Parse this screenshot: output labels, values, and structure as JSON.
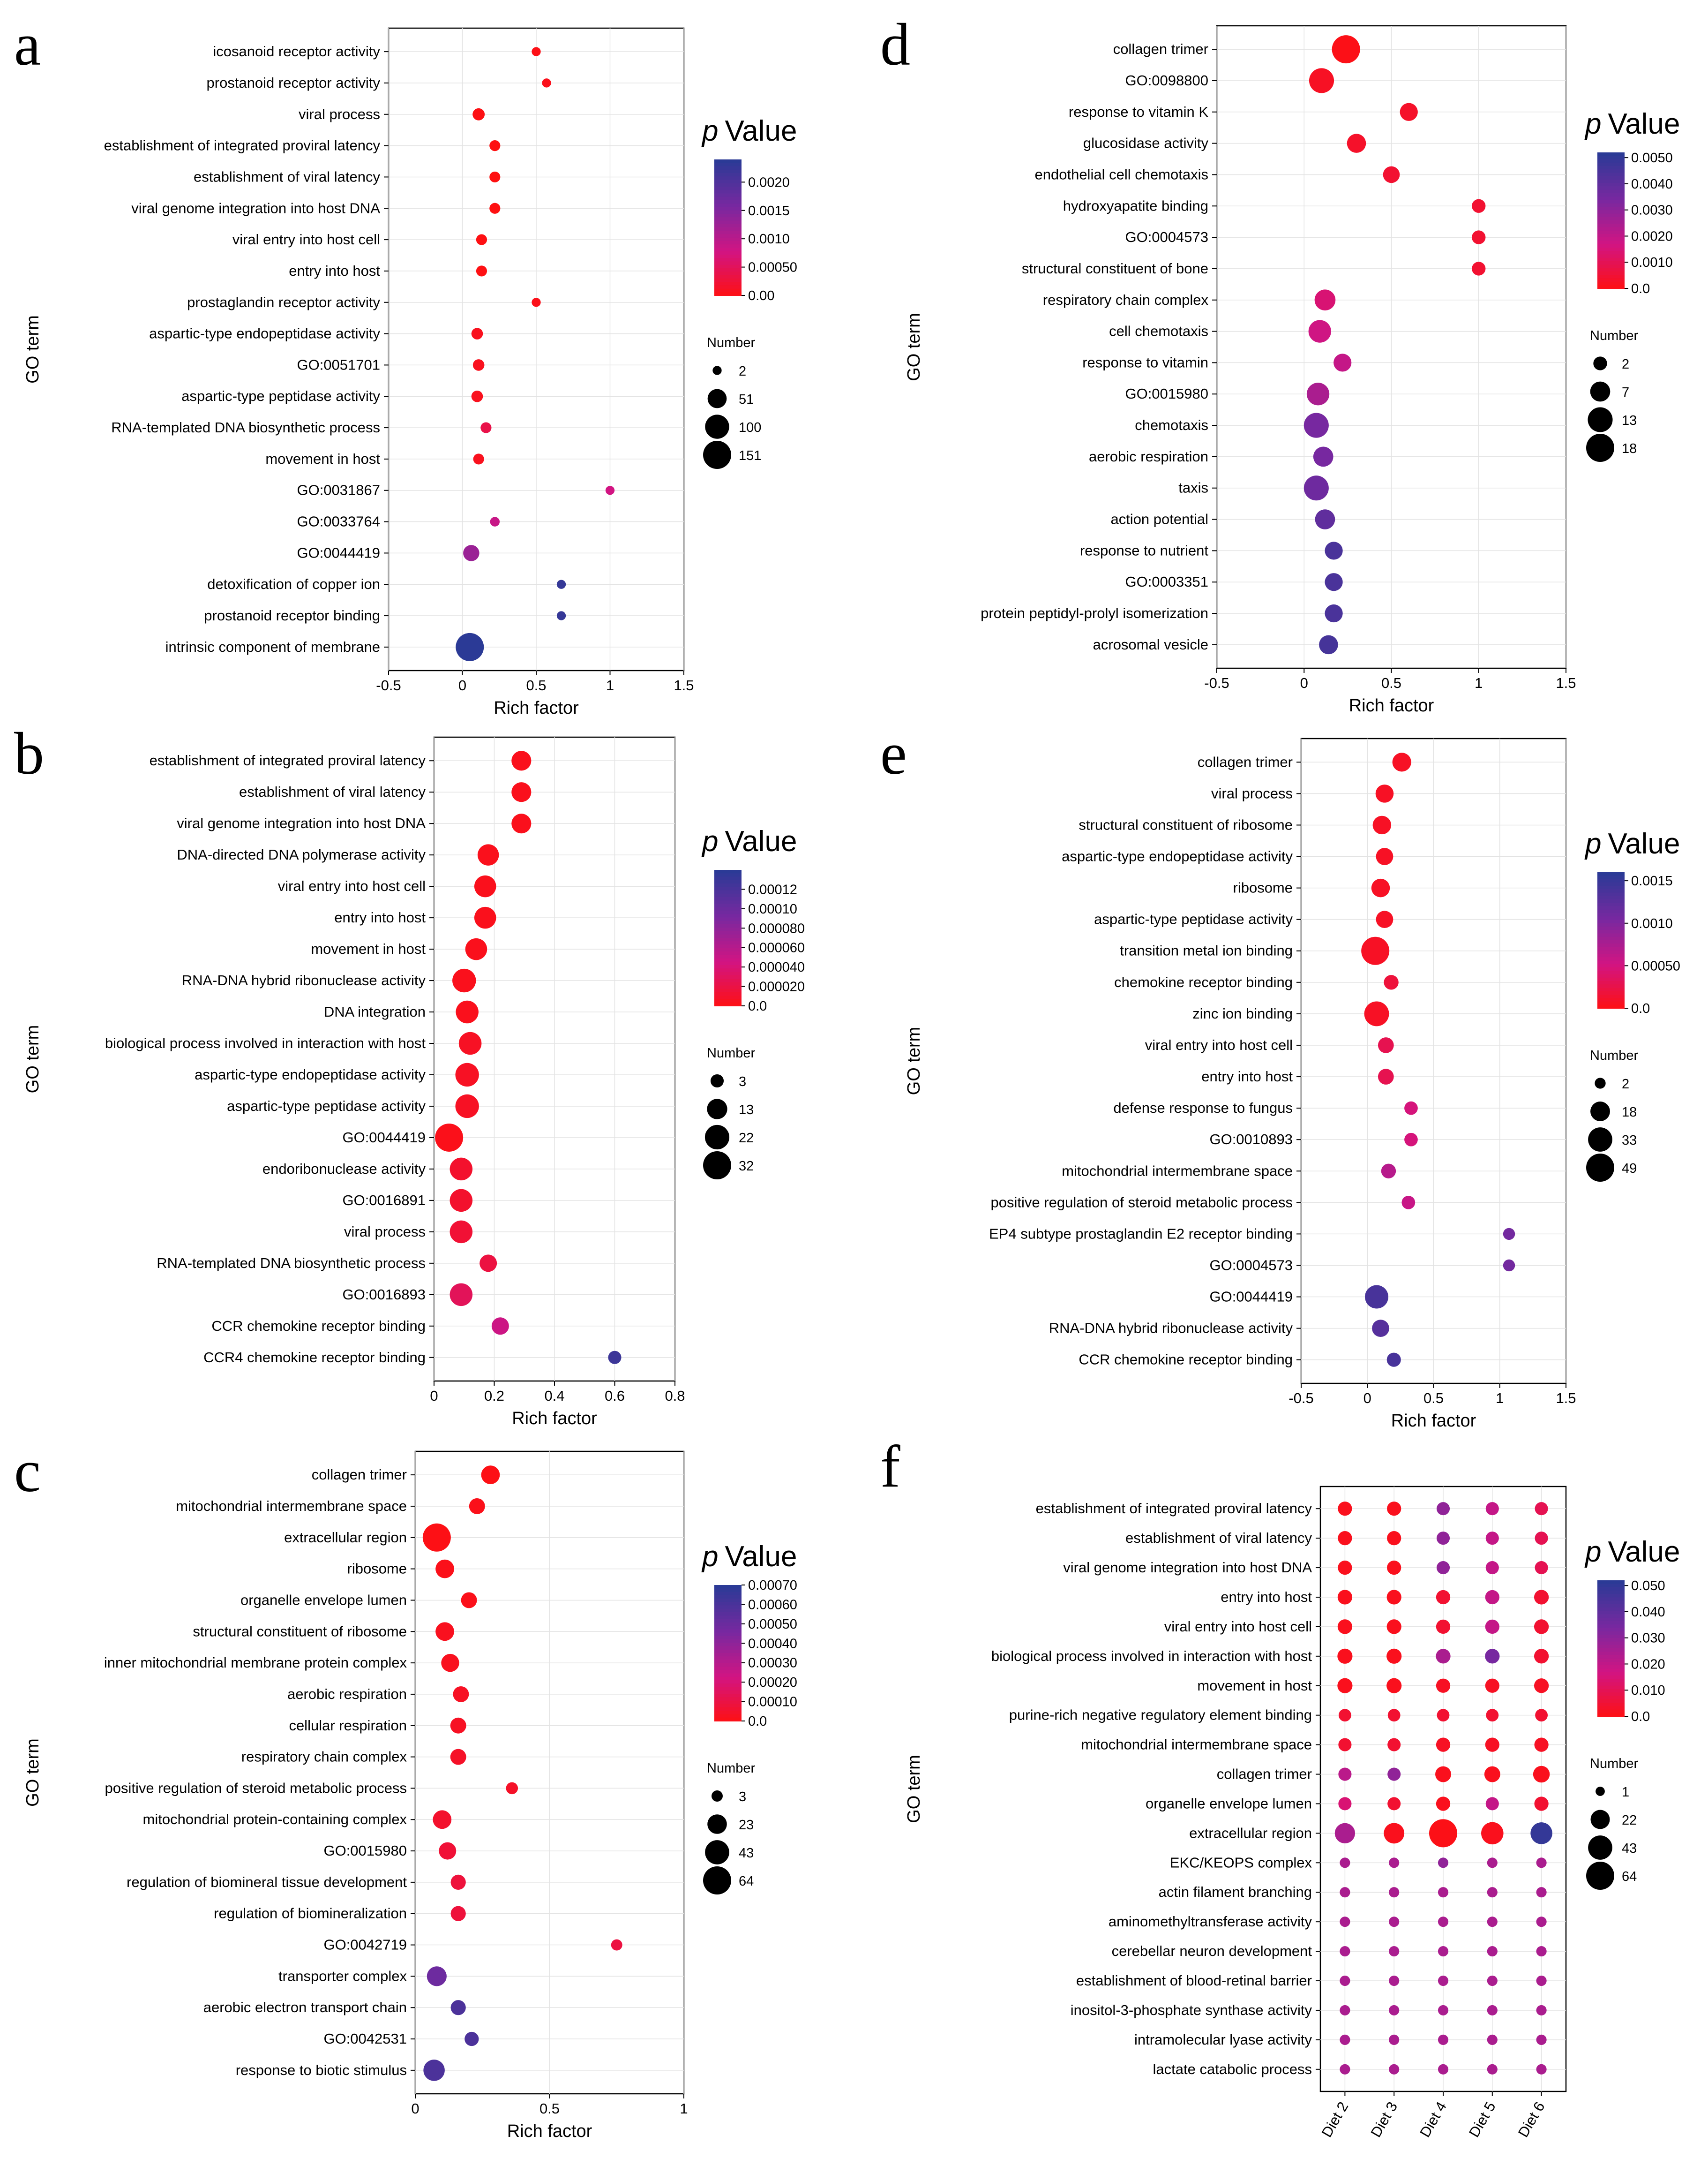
{
  "chart_data": [
    {
      "panel": "a",
      "type": "scatter",
      "xlabel": "Rich factor",
      "ylabel": "GO term",
      "xlim": [
        -0.5,
        1.5
      ],
      "xticks": [
        "-0.5",
        "0",
        "0.5",
        "1",
        "1.5"
      ],
      "xtick_values": [
        -0.5,
        0,
        0.5,
        1,
        1.5
      ],
      "color_title_italic": "p",
      "color_title": "Value",
      "color_range": [
        0,
        0.0024
      ],
      "colorbar_ticks": [
        "0.0020",
        "0.0015",
        "0.0010",
        "0.00050",
        "0.00"
      ],
      "colorbar_tick_values": [
        0.002,
        0.0015,
        0.001,
        0.0005,
        0
      ],
      "size_title": "Number",
      "size_legend": [
        "2",
        "51",
        "100",
        "151"
      ],
      "size_legend_values": [
        2,
        51,
        100,
        151
      ],
      "terms": [
        "icosanoid receptor activity",
        "prostanoid receptor activity",
        "viral process",
        "establishment of integrated proviral latency",
        "establishment of viral latency",
        "viral genome integration into host DNA",
        "viral entry into host cell",
        "entry into host",
        "prostaglandin receptor activity",
        "aspartic-type endopeptidase activity",
        "GO:0051701",
        "aspartic-type peptidase activity",
        "RNA-templated DNA biosynthetic process",
        "movement in host",
        "GO:0031867",
        "GO:0033764",
        "GO:0044419",
        "detoxification of copper ion",
        "prostanoid receptor binding",
        "intrinsic component of membrane"
      ],
      "rich_factor": [
        0.5,
        0.57,
        0.11,
        0.22,
        0.22,
        0.22,
        0.13,
        0.13,
        0.5,
        0.1,
        0.11,
        0.1,
        0.16,
        0.11,
        1.0,
        0.22,
        0.06,
        0.67,
        0.67,
        0.05
      ],
      "p_value": [
        4e-05,
        8e-05,
        3e-05,
        1e-05,
        1e-05,
        1e-05,
        2e-05,
        2e-05,
        6e-05,
        0.0001,
        0.0001,
        0.0001,
        0.0004,
        0.0001,
        0.0008,
        0.0009,
        0.0013,
        0.0023,
        0.0023,
        0.0024
      ],
      "number": [
        2,
        2,
        10,
        6,
        6,
        6,
        6,
        6,
        2,
        8,
        8,
        8,
        6,
        6,
        2,
        3,
        30,
        2,
        2,
        151
      ]
    },
    {
      "panel": "b",
      "type": "scatter",
      "xlabel": "Rich factor",
      "ylabel": "GO term",
      "xlim": [
        0,
        0.8
      ],
      "xticks": [
        "0",
        "0.2",
        "0.4",
        "0.6",
        "0.8"
      ],
      "xtick_values": [
        0,
        0.2,
        0.4,
        0.6,
        0.8
      ],
      "color_title_italic": "p",
      "color_title": "Value",
      "color_range": [
        0,
        0.00014
      ],
      "colorbar_ticks": [
        "0.00012",
        "0.00010",
        "0.000080",
        "0.000060",
        "0.000040",
        "0.000020",
        "0.0"
      ],
      "colorbar_tick_values": [
        0.00012,
        0.0001,
        8e-05,
        6e-05,
        4e-05,
        2e-05,
        0
      ],
      "size_title": "Number",
      "size_legend": [
        "3",
        "13",
        "22",
        "32"
      ],
      "size_legend_values": [
        3,
        13,
        22,
        32
      ],
      "terms": [
        "establishment of integrated proviral latency",
        "establishment of viral latency",
        "viral genome integration into host DNA",
        "DNA-directed DNA polymerase activity",
        "viral entry into host cell",
        "entry into host",
        "movement in host",
        "RNA-DNA hybrid ribonuclease activity",
        "DNA integration",
        "biological process involved in interaction with host",
        "aspartic-type endopeptidase activity",
        "aspartic-type peptidase activity",
        "GO:0044419",
        "endoribonuclease activity",
        "GO:0016891",
        "viral process",
        "RNA-templated DNA biosynthetic process",
        "GO:0016893",
        "CCR chemokine receptor binding",
        "CCR4 chemokine receptor binding"
      ],
      "rich_factor": [
        0.29,
        0.29,
        0.29,
        0.18,
        0.17,
        0.17,
        0.14,
        0.1,
        0.11,
        0.12,
        0.11,
        0.11,
        0.05,
        0.09,
        0.09,
        0.09,
        0.18,
        0.09,
        0.22,
        0.6
      ],
      "p_value": [
        5e-06,
        5e-06,
        5e-06,
        5e-06,
        5e-06,
        5e-06,
        5e-06,
        5e-06,
        5e-06,
        8e-06,
        8e-06,
        8e-06,
        4e-06,
        1.2e-05,
        1.2e-05,
        1.5e-05,
        2e-05,
        3e-05,
        5e-05,
        0.00013
      ],
      "number": [
        12,
        12,
        12,
        15,
        16,
        16,
        16,
        20,
        18,
        18,
        20,
        20,
        32,
        18,
        18,
        18,
        8,
        18,
        8,
        3
      ]
    },
    {
      "panel": "c",
      "type": "scatter",
      "xlabel": "Rich factor",
      "ylabel": "GO term",
      "xlim": [
        0,
        1
      ],
      "xticks": [
        "0",
        "0.5",
        "1"
      ],
      "xtick_values": [
        0,
        0.5,
        1
      ],
      "color_title_italic": "p",
      "color_title": "Value",
      "color_range": [
        0,
        0.0007
      ],
      "colorbar_ticks": [
        "0.00070",
        "0.00060",
        "0.00050",
        "0.00040",
        "0.00030",
        "0.00020",
        "0.00010",
        "0.0"
      ],
      "colorbar_tick_values": [
        0.0007,
        0.0006,
        0.0005,
        0.0004,
        0.0003,
        0.0002,
        0.0001,
        0
      ],
      "size_title": "Number",
      "size_legend": [
        "3",
        "23",
        "43",
        "64"
      ],
      "size_legend_values": [
        3,
        23,
        43,
        64
      ],
      "terms": [
        "collagen trimer",
        "mitochondrial intermembrane space",
        "extracellular region",
        "ribosome",
        "organelle envelope lumen",
        "structural constituent of ribosome",
        "inner mitochondrial membrane protein complex",
        "aerobic respiration",
        "cellular respiration",
        "respiratory chain complex",
        "positive regulation of steroid metabolic process",
        "mitochondrial protein-containing complex",
        "GO:0015980",
        "regulation of biomineral tissue development",
        "regulation of biomineralization",
        "GO:0042719",
        "transporter complex",
        "aerobic electron transport chain",
        "GO:0042531",
        "response to biotic stimulus"
      ],
      "rich_factor": [
        0.28,
        0.23,
        0.08,
        0.11,
        0.2,
        0.11,
        0.13,
        0.17,
        0.16,
        0.16,
        0.36,
        0.1,
        0.12,
        0.16,
        0.16,
        0.75,
        0.08,
        0.16,
        0.21,
        0.07
      ],
      "p_value": [
        1e-05,
        2e-05,
        1e-05,
        2e-05,
        2e-05,
        3e-05,
        3e-05,
        4e-05,
        4e-05,
        5e-05,
        5e-05,
        6e-05,
        8e-05,
        9e-05,
        9e-05,
        0.0001,
        0.0005,
        0.0006,
        0.0006,
        0.0006
      ],
      "number": [
        20,
        12,
        64,
        20,
        12,
        20,
        18,
        12,
        12,
        12,
        4,
        20,
        16,
        10,
        10,
        3,
        24,
        10,
        8,
        30
      ]
    },
    {
      "panel": "d",
      "type": "scatter",
      "xlabel": "Rich factor",
      "ylabel": "GO term",
      "xlim": [
        -0.5,
        1.5
      ],
      "xticks": [
        "-0.5",
        "0",
        "0.5",
        "1",
        "1.5"
      ],
      "xtick_values": [
        -0.5,
        0,
        0.5,
        1,
        1.5
      ],
      "color_title_italic": "p",
      "color_title": "Value",
      "color_range": [
        0,
        0.0052
      ],
      "colorbar_ticks": [
        "0.0050",
        "0.0040",
        "0.0030",
        "0.0020",
        "0.0010",
        "0.0"
      ],
      "colorbar_tick_values": [
        0.005,
        0.004,
        0.003,
        0.002,
        0.001,
        0
      ],
      "size_title": "Number",
      "size_legend": [
        "2",
        "7",
        "13",
        "18"
      ],
      "size_legend_values": [
        2,
        7,
        13,
        18
      ],
      "terms": [
        "collagen trimer",
        "GO:0098800",
        "response to vitamin K",
        "glucosidase activity",
        "endothelial cell chemotaxis",
        "hydroxyapatite binding",
        "GO:0004573",
        "structural constituent of bone",
        "respiratory chain complex",
        "cell chemotaxis",
        "response to vitamin",
        "GO:0015980",
        "chemotaxis",
        "aerobic respiration",
        "taxis",
        "action potential",
        "response to nutrient",
        "GO:0003351",
        "protein peptidyl-prolyl isomerization",
        "acrosomal vesicle"
      ],
      "rich_factor": [
        0.24,
        0.1,
        0.6,
        0.3,
        0.5,
        1.0,
        1.0,
        1.0,
        0.12,
        0.09,
        0.22,
        0.08,
        0.07,
        0.11,
        0.07,
        0.12,
        0.17,
        0.17,
        0.17,
        0.14
      ],
      "p_value": [
        0.0001,
        0.0003,
        0.0004,
        0.0004,
        0.0005,
        0.0005,
        0.0005,
        0.0005,
        0.0015,
        0.0018,
        0.002,
        0.0025,
        0.0035,
        0.0035,
        0.0037,
        0.004,
        0.0045,
        0.0045,
        0.0045,
        0.0046
      ],
      "number": [
        18,
        13,
        5,
        6,
        4,
        2,
        2,
        2,
        8,
        10,
        5,
        10,
        13,
        7,
        13,
        7,
        5,
        5,
        5,
        6
      ]
    },
    {
      "panel": "e",
      "type": "scatter",
      "xlabel": "Rich factor",
      "ylabel": "GO term",
      "xlim": [
        -0.5,
        1.5
      ],
      "xticks": [
        "-0.5",
        "0",
        "0.5",
        "1",
        "1.5"
      ],
      "xtick_values": [
        -0.5,
        0,
        0.5,
        1,
        1.5
      ],
      "color_title_italic": "p",
      "color_title": "Value",
      "color_range": [
        0,
        0.0016
      ],
      "colorbar_ticks": [
        "0.0015",
        "0.0010",
        "0.00050",
        "0.0"
      ],
      "colorbar_tick_values": [
        0.0015,
        0.001,
        0.0005,
        0
      ],
      "size_title": "Number",
      "size_legend": [
        "2",
        "18",
        "33",
        "49"
      ],
      "size_legend_values": [
        2,
        18,
        33,
        49
      ],
      "terms": [
        "collagen trimer",
        "viral process",
        "structural constituent of ribosome",
        "aspartic-type endopeptidase activity",
        "ribosome",
        "aspartic-type peptidase activity",
        "transition metal ion binding",
        "chemokine receptor binding",
        "zinc ion binding",
        "viral entry into host cell",
        "entry into host",
        "defense response to fungus",
        "GO:0010893",
        "mitochondrial intermembrane space",
        "positive regulation of steroid metabolic process",
        "EP4 subtype prostaglandin E2 receptor binding",
        "GO:0004573",
        "GO:0044419",
        "RNA-DNA hybrid ribonuclease activity",
        "CCR chemokine receptor binding"
      ],
      "rich_factor": [
        0.26,
        0.13,
        0.11,
        0.13,
        0.1,
        0.13,
        0.06,
        0.18,
        0.07,
        0.14,
        0.14,
        0.33,
        0.33,
        0.16,
        0.31,
        1.07,
        1.07,
        0.07,
        0.1,
        0.2
      ],
      "p_value": [
        0.0001,
        0.0001,
        0.0001,
        0.0001,
        0.0001,
        0.0001,
        0.0001,
        0.0002,
        0.0001,
        0.0003,
        0.0003,
        0.0005,
        0.0005,
        0.0007,
        0.0006,
        0.0011,
        0.0011,
        0.0014,
        0.0013,
        0.0014
      ],
      "number": [
        16,
        14,
        15,
        12,
        15,
        12,
        49,
        7,
        35,
        9,
        9,
        5,
        5,
        7,
        5,
        3,
        3,
        30,
        12,
        6
      ]
    },
    {
      "panel": "f",
      "type": "scatter",
      "xlabel": "",
      "ylabel": "GO term",
      "x_categories": [
        "Diet 2",
        "Diet 3",
        "Diet 4",
        "Diet 5",
        "Diet 6"
      ],
      "color_title_italic": "p",
      "color_title": "Value",
      "color_range": [
        0,
        0.052
      ],
      "colorbar_ticks": [
        "0.050",
        "0.040",
        "0.030",
        "0.020",
        "0.010",
        "0.0"
      ],
      "colorbar_tick_values": [
        0.05,
        0.04,
        0.03,
        0.02,
        0.01,
        0
      ],
      "size_title": "Number",
      "size_legend": [
        "1",
        "22",
        "43",
        "64"
      ],
      "size_legend_values": [
        1,
        22,
        43,
        64
      ],
      "terms": [
        "establishment of integrated proviral latency",
        "establishment of viral latency",
        "viral genome integration into host DNA",
        "entry into host",
        "viral entry into host cell",
        "biological process involved in interaction with host",
        "movement in host",
        "purine-rich negative regulatory element binding",
        "mitochondrial intermembrane space",
        "collagen trimer",
        "organelle envelope lumen",
        "extracellular region",
        "EKC/KEOPS complex",
        "actin filament branching",
        "aminomethyltransferase activity",
        "cerebellar neuron development",
        "establishment of blood-retinal barrier",
        "inositol-3-phosphate synthase activity",
        "intramolecular lyase activity",
        "lactate catabolic process"
      ],
      "number_matrix": [
        [
          8,
          8,
          6,
          6,
          6
        ],
        [
          8,
          8,
          6,
          6,
          6
        ],
        [
          8,
          8,
          6,
          6,
          6
        ],
        [
          9,
          9,
          8,
          8,
          9
        ],
        [
          9,
          9,
          8,
          8,
          9
        ],
        [
          10,
          10,
          9,
          9,
          9
        ],
        [
          10,
          10,
          8,
          8,
          9
        ],
        [
          5,
          5,
          5,
          5,
          5
        ],
        [
          6,
          6,
          8,
          8,
          8
        ],
        [
          6,
          6,
          12,
          12,
          14
        ],
        [
          6,
          6,
          8,
          6,
          8
        ],
        [
          26,
          27,
          64,
          34,
          32
        ],
        [
          2,
          2,
          2,
          2,
          2
        ],
        [
          2,
          2,
          2,
          2,
          2
        ],
        [
          2,
          2,
          2,
          2,
          2
        ],
        [
          2,
          2,
          2,
          2,
          2
        ],
        [
          2,
          2,
          2,
          2,
          2
        ],
        [
          2,
          2,
          2,
          2,
          2
        ],
        [
          2,
          2,
          2,
          2,
          2
        ],
        [
          2,
          2,
          2,
          2,
          2
        ]
      ],
      "p_matrix": [
        [
          0.002,
          0.002,
          0.03,
          0.02,
          0.01
        ],
        [
          0.002,
          0.002,
          0.03,
          0.02,
          0.01
        ],
        [
          0.002,
          0.002,
          0.03,
          0.02,
          0.01
        ],
        [
          0.002,
          0.002,
          0.005,
          0.02,
          0.005
        ],
        [
          0.002,
          0.002,
          0.005,
          0.02,
          0.005
        ],
        [
          0.002,
          0.002,
          0.025,
          0.035,
          0.005
        ],
        [
          0.002,
          0.002,
          0.003,
          0.003,
          0.003
        ],
        [
          0.005,
          0.005,
          0.005,
          0.005,
          0.005
        ],
        [
          0.005,
          0.005,
          0.003,
          0.003,
          0.003
        ],
        [
          0.022,
          0.03,
          0.002,
          0.002,
          0.002
        ],
        [
          0.015,
          0.005,
          0.002,
          0.02,
          0.005
        ],
        [
          0.025,
          0.002,
          0.001,
          0.002,
          0.05
        ],
        [
          0.025,
          0.025,
          0.03,
          0.025,
          0.025
        ],
        [
          0.025,
          0.025,
          0.025,
          0.025,
          0.025
        ],
        [
          0.025,
          0.025,
          0.025,
          0.025,
          0.025
        ],
        [
          0.025,
          0.025,
          0.025,
          0.025,
          0.025
        ],
        [
          0.025,
          0.025,
          0.025,
          0.025,
          0.025
        ],
        [
          0.025,
          0.025,
          0.025,
          0.025,
          0.025
        ],
        [
          0.025,
          0.025,
          0.025,
          0.025,
          0.025
        ],
        [
          0.025,
          0.025,
          0.025,
          0.025,
          0.025
        ]
      ]
    }
  ]
}
